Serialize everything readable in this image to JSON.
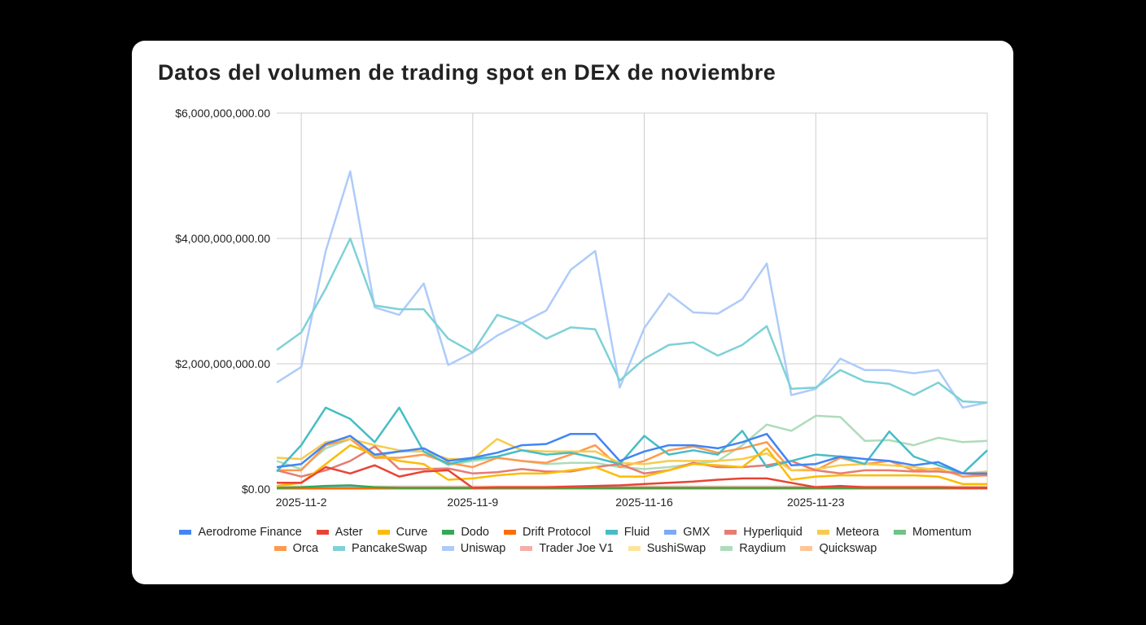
{
  "chart_data": {
    "type": "line",
    "title": "Datos del volumen de trading spot en DEX de noviembre",
    "xlabel": "",
    "ylabel": "",
    "x": [
      "2025-11-1",
      "2025-11-2",
      "2025-11-3",
      "2025-11-4",
      "2025-11-5",
      "2025-11-6",
      "2025-11-7",
      "2025-11-8",
      "2025-11-9",
      "2025-11-10",
      "2025-11-11",
      "2025-11-12",
      "2025-11-13",
      "2025-11-14",
      "2025-11-15",
      "2025-11-16",
      "2025-11-17",
      "2025-11-18",
      "2025-11-19",
      "2025-11-20",
      "2025-11-21",
      "2025-11-22",
      "2025-11-23",
      "2025-11-24",
      "2025-11-25",
      "2025-11-26",
      "2025-11-27",
      "2025-11-28",
      "2025-11-29",
      "2025-11-30"
    ],
    "x_tick_labels": [
      "2025-11-2",
      "2025-11-9",
      "2025-11-16",
      "2025-11-23"
    ],
    "x_tick_index": [
      1,
      8,
      15,
      22
    ],
    "y_tick_labels": [
      "$0.00",
      "$2,000,000,000.00",
      "$4,000,000,000.00",
      "$6,000,000,000.00"
    ],
    "y_ticks": [
      0,
      2000000000.0,
      4000000000.0,
      6000000000.0
    ],
    "ylim": [
      0,
      6000000000.0
    ],
    "grid": true,
    "legend_position": "bottom",
    "series": [
      {
        "name": "Aerodrome Finance",
        "color": "#4285f4",
        "values": [
          350000000.0,
          400000000.0,
          720000000.0,
          850000000.0,
          550000000.0,
          600000000.0,
          650000000.0,
          450000000.0,
          500000000.0,
          580000000.0,
          700000000.0,
          720000000.0,
          880000000.0,
          880000000.0,
          450000000.0,
          600000000.0,
          700000000.0,
          700000000.0,
          650000000.0,
          750000000.0,
          880000000.0,
          380000000.0,
          400000000.0,
          520000000.0,
          480000000.0,
          450000000.0,
          380000000.0,
          430000000.0,
          250000000.0,
          250000000.0
        ]
      },
      {
        "name": "Aster",
        "color": "#ea4335",
        "values": [
          100000000.0,
          100000000.0,
          350000000.0,
          250000000.0,
          380000000.0,
          200000000.0,
          280000000.0,
          300000000.0,
          20000000.0,
          30000000.0,
          30000000.0,
          30000000.0,
          40000000.0,
          50000000.0,
          60000000.0,
          80000000.0,
          100000000.0,
          120000000.0,
          150000000.0,
          170000000.0,
          170000000.0,
          100000000.0,
          30000000.0,
          50000000.0,
          30000000.0,
          30000000.0,
          30000000.0,
          30000000.0,
          20000000.0,
          20000000.0
        ]
      },
      {
        "name": "Curve",
        "color": "#fbbc04",
        "values": [
          50000000.0,
          100000000.0,
          400000000.0,
          700000000.0,
          550000000.0,
          450000000.0,
          400000000.0,
          150000000.0,
          170000000.0,
          220000000.0,
          250000000.0,
          250000000.0,
          300000000.0,
          350000000.0,
          200000000.0,
          200000000.0,
          300000000.0,
          400000000.0,
          380000000.0,
          350000000.0,
          650000000.0,
          150000000.0,
          200000000.0,
          220000000.0,
          220000000.0,
          220000000.0,
          220000000.0,
          200000000.0,
          80000000.0,
          80000000.0
        ]
      },
      {
        "name": "Dodo",
        "color": "#34a853",
        "values": [
          20000000.0,
          30000000.0,
          50000000.0,
          60000000.0,
          30000000.0,
          20000000.0,
          20000000.0,
          20000000.0,
          20000000.0,
          20000000.0,
          20000000.0,
          20000000.0,
          20000000.0,
          20000000.0,
          20000000.0,
          20000000.0,
          20000000.0,
          20000000.0,
          20000000.0,
          20000000.0,
          20000000.0,
          20000000.0,
          20000000.0,
          20000000.0,
          20000000.0,
          20000000.0,
          20000000.0,
          20000000.0,
          20000000.0,
          20000000.0
        ]
      },
      {
        "name": "Drift Protocol",
        "color": "#ff6d01",
        "values": [
          10000000.0,
          10000000.0,
          10000000.0,
          10000000.0,
          10000000.0,
          10000000.0,
          10000000.0,
          10000000.0,
          10000000.0,
          10000000.0,
          10000000.0,
          10000000.0,
          10000000.0,
          10000000.0,
          10000000.0,
          10000000.0,
          10000000.0,
          10000000.0,
          10000000.0,
          10000000.0,
          10000000.0,
          10000000.0,
          10000000.0,
          10000000.0,
          10000000.0,
          10000000.0,
          10000000.0,
          10000000.0,
          10000000.0,
          10000000.0
        ]
      },
      {
        "name": "Fluid",
        "color": "#46bdc6",
        "values": [
          280000000.0,
          700000000.0,
          1300000000.0,
          1120000000.0,
          750000000.0,
          1300000000.0,
          600000000.0,
          400000000.0,
          480000000.0,
          520000000.0,
          620000000.0,
          550000000.0,
          580000000.0,
          500000000.0,
          400000000.0,
          850000000.0,
          550000000.0,
          620000000.0,
          550000000.0,
          930000000.0,
          350000000.0,
          450000000.0,
          550000000.0,
          520000000.0,
          400000000.0,
          920000000.0,
          520000000.0,
          380000000.0,
          250000000.0,
          620000000.0
        ]
      },
      {
        "name": "GMX",
        "color": "#7baaf7",
        "values": [
          20000000.0,
          20000000.0,
          20000000.0,
          20000000.0,
          20000000.0,
          20000000.0,
          20000000.0,
          20000000.0,
          20000000.0,
          20000000.0,
          20000000.0,
          20000000.0,
          20000000.0,
          20000000.0,
          20000000.0,
          20000000.0,
          20000000.0,
          20000000.0,
          20000000.0,
          20000000.0,
          20000000.0,
          20000000.0,
          20000000.0,
          20000000.0,
          20000000.0,
          20000000.0,
          20000000.0,
          20000000.0,
          20000000.0,
          20000000.0
        ]
      },
      {
        "name": "Hyperliquid",
        "color": "#e67c73",
        "values": [
          300000000.0,
          200000000.0,
          300000000.0,
          450000000.0,
          680000000.0,
          320000000.0,
          320000000.0,
          330000000.0,
          250000000.0,
          270000000.0,
          320000000.0,
          280000000.0,
          280000000.0,
          350000000.0,
          400000000.0,
          250000000.0,
          300000000.0,
          420000000.0,
          350000000.0,
          350000000.0,
          380000000.0,
          450000000.0,
          300000000.0,
          250000000.0,
          300000000.0,
          300000000.0,
          280000000.0,
          280000000.0,
          250000000.0,
          220000000.0
        ]
      },
      {
        "name": "Meteora",
        "color": "#f7cb4d",
        "values": [
          500000000.0,
          480000000.0,
          750000000.0,
          800000000.0,
          700000000.0,
          620000000.0,
          600000000.0,
          480000000.0,
          480000000.0,
          800000000.0,
          620000000.0,
          600000000.0,
          600000000.0,
          600000000.0,
          420000000.0,
          400000000.0,
          450000000.0,
          450000000.0,
          450000000.0,
          480000000.0,
          570000000.0,
          300000000.0,
          320000000.0,
          380000000.0,
          400000000.0,
          380000000.0,
          350000000.0,
          300000000.0,
          250000000.0,
          280000000.0
        ]
      },
      {
        "name": "Momentum",
        "color": "#71c287",
        "values": [
          10000000.0,
          10000000.0,
          10000000.0,
          10000000.0,
          10000000.0,
          10000000.0,
          10000000.0,
          10000000.0,
          10000000.0,
          10000000.0,
          10000000.0,
          10000000.0,
          10000000.0,
          10000000.0,
          10000000.0,
          10000000.0,
          10000000.0,
          10000000.0,
          10000000.0,
          10000000.0,
          10000000.0,
          10000000.0,
          10000000.0,
          10000000.0,
          10000000.0,
          10000000.0,
          10000000.0,
          10000000.0,
          10000000.0,
          10000000.0
        ]
      },
      {
        "name": "Orca",
        "color": "#ff994d",
        "values": [
          300000000.0,
          300000000.0,
          700000000.0,
          800000000.0,
          500000000.0,
          500000000.0,
          550000000.0,
          420000000.0,
          350000000.0,
          500000000.0,
          450000000.0,
          420000000.0,
          550000000.0,
          700000000.0,
          350000000.0,
          450000000.0,
          620000000.0,
          680000000.0,
          580000000.0,
          650000000.0,
          750000000.0,
          300000000.0,
          300000000.0,
          500000000.0,
          400000000.0,
          450000000.0,
          300000000.0,
          330000000.0,
          200000000.0,
          220000000.0
        ]
      },
      {
        "name": "PancakeSwap",
        "color": "#7ed1d7",
        "values": [
          2220000000.0,
          2500000000.0,
          3200000000.0,
          4000000000.0,
          2930000000.0,
          2870000000.0,
          2870000000.0,
          2400000000.0,
          2180000000.0,
          2780000000.0,
          2650000000.0,
          2400000000.0,
          2580000000.0,
          2550000000.0,
          1730000000.0,
          2080000000.0,
          2300000000.0,
          2340000000.0,
          2130000000.0,
          2300000000.0,
          2600000000.0,
          1600000000.0,
          1620000000.0,
          1900000000.0,
          1720000000.0,
          1680000000.0,
          1500000000.0,
          1700000000.0,
          1400000000.0,
          1380000000.0
        ]
      },
      {
        "name": "Uniswap",
        "color": "#aecbfa",
        "values": [
          1700000000.0,
          1950000000.0,
          3800000000.0,
          5070000000.0,
          2900000000.0,
          2780000000.0,
          3280000000.0,
          1980000000.0,
          2180000000.0,
          2450000000.0,
          2650000000.0,
          2850000000.0,
          3500000000.0,
          3800000000.0,
          1620000000.0,
          2570000000.0,
          3120000000.0,
          2820000000.0,
          2800000000.0,
          3030000000.0,
          3600000000.0,
          1500000000.0,
          1600000000.0,
          2080000000.0,
          1900000000.0,
          1900000000.0,
          1850000000.0,
          1900000000.0,
          1300000000.0,
          1380000000.0
        ]
      },
      {
        "name": "Trader Joe V1",
        "color": "#f6aea9",
        "values": [
          30000000.0,
          30000000.0,
          30000000.0,
          30000000.0,
          30000000.0,
          30000000.0,
          30000000.0,
          30000000.0,
          30000000.0,
          30000000.0,
          30000000.0,
          30000000.0,
          30000000.0,
          30000000.0,
          30000000.0,
          30000000.0,
          30000000.0,
          30000000.0,
          30000000.0,
          30000000.0,
          30000000.0,
          30000000.0,
          30000000.0,
          30000000.0,
          30000000.0,
          30000000.0,
          30000000.0,
          30000000.0,
          30000000.0,
          30000000.0
        ]
      },
      {
        "name": "SushiSwap",
        "color": "#fde49b",
        "values": [
          10000000.0,
          10000000.0,
          10000000.0,
          10000000.0,
          10000000.0,
          10000000.0,
          10000000.0,
          10000000.0,
          10000000.0,
          10000000.0,
          10000000.0,
          10000000.0,
          10000000.0,
          10000000.0,
          10000000.0,
          10000000.0,
          10000000.0,
          10000000.0,
          10000000.0,
          10000000.0,
          10000000.0,
          10000000.0,
          10000000.0,
          10000000.0,
          10000000.0,
          10000000.0,
          10000000.0,
          10000000.0,
          10000000.0,
          10000000.0
        ]
      },
      {
        "name": "Raydium",
        "color": "#aedcba",
        "values": [
          450000000.0,
          320000000.0,
          650000000.0,
          800000000.0,
          520000000.0,
          600000000.0,
          600000000.0,
          380000000.0,
          450000000.0,
          500000000.0,
          450000000.0,
          400000000.0,
          420000000.0,
          420000000.0,
          350000000.0,
          320000000.0,
          350000000.0,
          400000000.0,
          450000000.0,
          700000000.0,
          1030000000.0,
          930000000.0,
          1170000000.0,
          1150000000.0,
          770000000.0,
          780000000.0,
          700000000.0,
          820000000.0,
          750000000.0,
          770000000.0
        ]
      },
      {
        "name": "Quickswap",
        "color": "#ffc599",
        "values": [
          40000000.0,
          40000000.0,
          40000000.0,
          40000000.0,
          40000000.0,
          40000000.0,
          40000000.0,
          40000000.0,
          40000000.0,
          40000000.0,
          40000000.0,
          40000000.0,
          40000000.0,
          40000000.0,
          40000000.0,
          40000000.0,
          40000000.0,
          40000000.0,
          40000000.0,
          40000000.0,
          40000000.0,
          40000000.0,
          40000000.0,
          40000000.0,
          40000000.0,
          40000000.0,
          40000000.0,
          40000000.0,
          40000000.0,
          40000000.0
        ]
      }
    ]
  }
}
